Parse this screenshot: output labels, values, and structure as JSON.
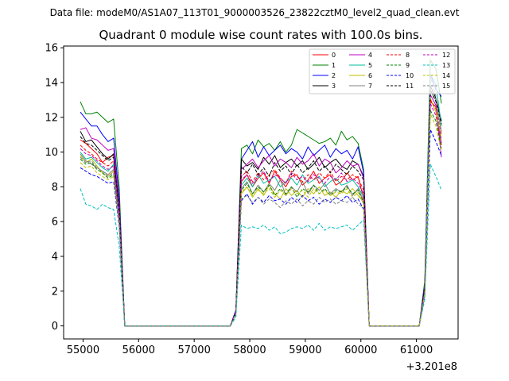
{
  "chart_data": {
    "type": "line",
    "suptitle": "Data file: modeM0/AS1A07_113T01_9000003526_23822cztM0_level2_quad_clean.evt",
    "title": "Quadrant 0 module wise count rates with 100.0s bins.",
    "xlabel": "",
    "ylabel": "",
    "x_offset_label": "+3.201e8",
    "xlim": [
      54650,
      61750
    ],
    "ylim": [
      -0.75,
      16.1
    ],
    "xticks": [
      55000,
      56000,
      57000,
      58000,
      59000,
      60000,
      61000
    ],
    "yticks": [
      0,
      2,
      4,
      6,
      8,
      10,
      12,
      14,
      16
    ],
    "grid": false,
    "legend_position": "top-right",
    "legend_columns": 4,
    "time_bins": {
      "seg1": [
        54950,
        55050,
        55150,
        55250,
        55350,
        55450,
        55550,
        55650,
        55750
      ],
      "gap1_start": 55850,
      "gap1_end": 57650,
      "seg2": [
        57750,
        57850,
        57950,
        58050,
        58150,
        58250,
        58350,
        58450,
        58550,
        58650,
        58750,
        58850,
        58950,
        59050,
        59150,
        59250,
        59350,
        59450,
        59550,
        59650,
        59750,
        59850,
        59950,
        60050,
        60150
      ],
      "gap2_start": 60250,
      "gap2_end": 61050,
      "seg3": [
        61150,
        61250,
        61350,
        61450
      ]
    },
    "series": [
      {
        "name": "0",
        "color": "#ff0000",
        "dash": "solid",
        "seg1": [
          10.7,
          10.5,
          10.2,
          9.9,
          9.4,
          9.7,
          9.8,
          6.0,
          0.0
        ],
        "seg2": [
          0.8,
          8.3,
          8.7,
          8.0,
          8.5,
          8.8,
          8.2,
          8.9,
          8.4,
          8.0,
          8.6,
          8.7,
          8.1,
          8.4,
          8.9,
          8.2,
          8.5,
          8.7,
          8.1,
          8.3,
          8.8,
          8.4,
          8.6,
          7.3,
          0.0
        ],
        "seg3": [
          2.0,
          12.9,
          12.6,
          10.4
        ]
      },
      {
        "name": "1",
        "color": "#008000",
        "dash": "solid",
        "seg1": [
          12.9,
          12.2,
          12.2,
          12.3,
          12.0,
          11.7,
          11.9,
          8.0,
          0.0
        ],
        "seg2": [
          0.9,
          10.2,
          10.4,
          9.9,
          10.7,
          10.3,
          10.5,
          10.1,
          10.6,
          10.0,
          10.4,
          11.3,
          11.1,
          10.9,
          10.7,
          10.5,
          10.6,
          10.8,
          10.4,
          11.2,
          10.7,
          10.9,
          10.5,
          9.0,
          0.0
        ],
        "seg3": [
          2.6,
          15.3,
          14.8,
          12.8
        ]
      },
      {
        "name": "2",
        "color": "#0000ff",
        "dash": "solid",
        "seg1": [
          12.3,
          11.9,
          11.5,
          11.5,
          11.0,
          10.6,
          10.8,
          7.4,
          0.0
        ],
        "seg2": [
          0.9,
          9.6,
          10.1,
          10.6,
          9.7,
          10.3,
          9.8,
          10.1,
          10.4,
          9.9,
          10.2,
          10.0,
          9.6,
          10.3,
          9.8,
          10.1,
          10.4,
          9.7,
          10.2,
          9.9,
          10.1,
          9.6,
          10.3,
          8.8,
          0.0
        ],
        "seg3": [
          2.4,
          14.5,
          13.6,
          13.2
        ]
      },
      {
        "name": "3",
        "color": "#000000",
        "dash": "solid",
        "seg1": [
          11.2,
          10.6,
          10.7,
          10.3,
          9.9,
          9.6,
          9.9,
          6.8,
          0.0
        ],
        "seg2": [
          0.8,
          9.6,
          9.2,
          9.4,
          9.0,
          9.7,
          9.3,
          9.8,
          9.1,
          9.4,
          9.6,
          9.2,
          9.5,
          9.0,
          9.3,
          9.7,
          9.1,
          9.4,
          9.6,
          9.2,
          9.0,
          9.5,
          9.3,
          8.6,
          0.0
        ],
        "seg3": [
          2.2,
          13.8,
          13.1,
          11.8
        ]
      },
      {
        "name": "4",
        "color": "#bf00bf",
        "dash": "solid",
        "seg1": [
          11.3,
          11.4,
          10.8,
          10.7,
          10.4,
          10.1,
          10.2,
          7.0,
          0.0
        ],
        "seg2": [
          0.8,
          9.0,
          9.3,
          9.6,
          9.1,
          9.5,
          9.8,
          9.2,
          9.6,
          9.4,
          9.1,
          9.7,
          9.3,
          9.5,
          9.9,
          9.2,
          9.6,
          9.4,
          8.8,
          9.1,
          9.5,
          9.2,
          9.3,
          8.5,
          0.0
        ],
        "seg3": [
          2.2,
          13.3,
          12.7,
          9.7
        ]
      },
      {
        "name": "5",
        "color": "#00bfa0",
        "dash": "solid",
        "seg1": [
          10.0,
          9.6,
          9.7,
          9.4,
          9.1,
          8.9,
          9.3,
          6.4,
          0.0
        ],
        "seg2": [
          0.7,
          8.1,
          8.5,
          8.0,
          8.7,
          8.2,
          8.4,
          8.6,
          8.0,
          8.3,
          8.5,
          8.1,
          8.7,
          8.2,
          8.4,
          8.6,
          8.0,
          8.3,
          8.5,
          8.1,
          8.2,
          8.4,
          8.0,
          7.4,
          0.0
        ],
        "seg3": [
          2.0,
          14.5,
          13.9,
          11.5
        ]
      },
      {
        "name": "6",
        "color": "#bfbf00",
        "dash": "solid",
        "seg1": [
          9.8,
          9.4,
          9.6,
          9.2,
          8.8,
          8.6,
          8.9,
          6.1,
          0.0
        ],
        "seg2": [
          0.7,
          7.6,
          8.0,
          7.4,
          7.9,
          7.5,
          8.1,
          7.6,
          7.3,
          7.9,
          7.5,
          7.8,
          7.4,
          7.9,
          7.6,
          8.0,
          7.5,
          7.7,
          7.4,
          7.8,
          7.6,
          7.9,
          7.5,
          7.1,
          0.0
        ],
        "seg3": [
          1.9,
          13.1,
          12.3,
          10.8
        ]
      },
      {
        "name": "7",
        "color": "#808080",
        "dash": "solid",
        "seg1": [
          9.9,
          9.5,
          9.3,
          9.1,
          8.9,
          8.7,
          9.0,
          6.2,
          0.0
        ],
        "seg2": [
          0.7,
          7.9,
          8.3,
          7.6,
          8.1,
          7.7,
          8.2,
          7.8,
          8.4,
          7.5,
          8.0,
          7.7,
          8.3,
          7.6,
          8.1,
          7.8,
          8.2,
          7.6,
          7.9,
          7.7,
          8.1,
          7.5,
          7.9,
          7.2,
          0.0
        ],
        "seg3": [
          2.0,
          13.5,
          13.0,
          11.2
        ]
      },
      {
        "name": "8",
        "color": "#ff0000",
        "dash": "dashed",
        "seg1": [
          10.4,
          10.1,
          9.9,
          9.6,
          9.4,
          9.2,
          9.5,
          6.5,
          0.0
        ],
        "seg2": [
          0.8,
          8.6,
          8.9,
          8.3,
          8.8,
          8.4,
          8.7,
          9.0,
          8.5,
          8.2,
          8.9,
          8.6,
          8.3,
          8.7,
          8.4,
          8.8,
          8.5,
          8.9,
          8.3,
          8.6,
          8.4,
          8.7,
          8.5,
          7.8,
          0.0
        ],
        "seg3": [
          2.1,
          13.0,
          12.5,
          11.0
        ]
      },
      {
        "name": "9",
        "color": "#008000",
        "dash": "dashed",
        "seg1": [
          9.6,
          9.3,
          9.4,
          9.0,
          8.8,
          8.5,
          8.7,
          6.0,
          0.0
        ],
        "seg2": [
          0.7,
          7.8,
          8.2,
          7.6,
          8.0,
          7.7,
          8.1,
          7.5,
          7.9,
          7.6,
          8.0,
          7.4,
          7.9,
          7.7,
          8.1,
          7.6,
          7.9,
          7.5,
          7.8,
          7.7,
          8.0,
          7.6,
          7.8,
          7.1,
          0.0
        ],
        "seg3": [
          1.9,
          12.4,
          11.8,
          10.2
        ]
      },
      {
        "name": "10",
        "color": "#0000ff",
        "dash": "dashed",
        "seg1": [
          9.1,
          8.9,
          8.7,
          8.6,
          8.4,
          8.2,
          8.3,
          5.7,
          0.0
        ],
        "seg2": [
          0.7,
          7.2,
          7.6,
          7.0,
          7.4,
          7.1,
          7.5,
          7.2,
          7.3,
          7.0,
          7.4,
          7.1,
          7.5,
          7.2,
          7.4,
          7.0,
          7.3,
          7.1,
          7.4,
          7.2,
          7.5,
          7.1,
          7.3,
          6.7,
          0.0
        ],
        "seg3": [
          1.8,
          11.3,
          10.6,
          9.8
        ]
      },
      {
        "name": "11",
        "color": "#000000",
        "dash": "dashed",
        "seg1": [
          10.9,
          10.5,
          10.4,
          10.1,
          9.8,
          9.5,
          9.7,
          6.7,
          0.0
        ],
        "seg2": [
          0.8,
          9.2,
          8.8,
          9.3,
          8.7,
          9.1,
          8.6,
          9.4,
          8.9,
          9.2,
          8.7,
          9.3,
          8.8,
          9.1,
          9.5,
          8.9,
          9.2,
          8.8,
          9.3,
          9.0,
          8.7,
          9.2,
          8.9,
          8.4,
          0.0
        ],
        "seg3": [
          2.2,
          13.6,
          12.9,
          11.6
        ]
      },
      {
        "name": "12",
        "color": "#bf00bf",
        "dash": "dashed",
        "seg1": [
          10.2,
          9.9,
          9.8,
          9.5,
          9.2,
          9.0,
          9.2,
          6.3,
          0.0
        ],
        "seg2": [
          0.8,
          8.4,
          8.7,
          8.2,
          8.6,
          8.9,
          8.3,
          8.7,
          8.5,
          8.2,
          8.8,
          8.4,
          8.6,
          8.3,
          8.7,
          8.5,
          8.2,
          8.6,
          8.4,
          8.8,
          8.3,
          8.5,
          8.2,
          7.6,
          0.0
        ],
        "seg3": [
          2.0,
          12.8,
          12.1,
          10.5
        ]
      },
      {
        "name": "13",
        "color": "#00bfbf",
        "dash": "dashed",
        "seg1": [
          7.9,
          7.0,
          6.9,
          6.7,
          7.0,
          6.8,
          6.7,
          4.6,
          0.0
        ],
        "seg2": [
          0.5,
          5.8,
          5.6,
          5.7,
          5.6,
          5.8,
          5.5,
          5.7,
          5.3,
          5.4,
          5.6,
          5.7,
          5.6,
          5.8,
          5.5,
          5.9,
          5.5,
          5.7,
          5.6,
          5.7,
          5.8,
          5.5,
          5.8,
          6.1,
          0.0
        ],
        "seg3": [
          1.5,
          9.3,
          8.6,
          7.8
        ]
      },
      {
        "name": "14",
        "color": "#bfbf00",
        "dash": "dashed",
        "seg1": [
          9.4,
          9.1,
          9.2,
          8.8,
          8.6,
          8.4,
          8.6,
          5.9,
          0.0
        ],
        "seg2": [
          0.7,
          7.7,
          8.0,
          7.5,
          7.8,
          7.6,
          7.9,
          7.4,
          7.8,
          7.5,
          7.9,
          7.6,
          7.8,
          7.4,
          7.9,
          7.6,
          7.8,
          7.5,
          7.7,
          7.6,
          7.9,
          7.4,
          7.7,
          7.0,
          0.0
        ],
        "seg3": [
          1.9,
          12.2,
          11.5,
          10.0
        ]
      },
      {
        "name": "15",
        "color": "#808080",
        "dash": "dashed",
        "seg1": [
          9.7,
          9.4,
          9.5,
          9.1,
          8.9,
          8.6,
          8.8,
          6.1,
          0.0
        ],
        "seg2": [
          0.7,
          7.3,
          7.5,
          7.1,
          7.4,
          7.0,
          7.3,
          7.1,
          6.8,
          7.2,
          7.0,
          7.3,
          6.9,
          7.2,
          7.0,
          7.4,
          7.1,
          7.3,
          7.0,
          7.2,
          7.1,
          7.4,
          7.0,
          6.8,
          0.0
        ],
        "seg3": [
          1.9,
          14.4,
          13.2,
          10.6
        ]
      }
    ]
  }
}
